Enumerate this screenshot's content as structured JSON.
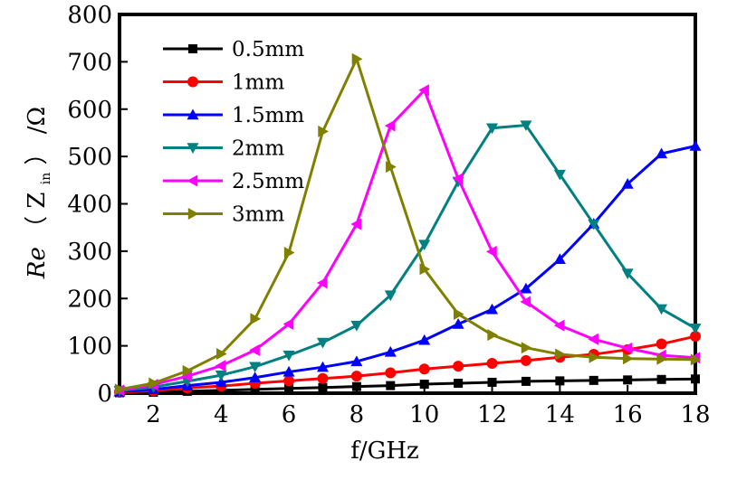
{
  "chart_data": {
    "type": "line",
    "xlabel": "f/GHz",
    "ylabel_prefix": "Re",
    "ylabel_var": "Z",
    "ylabel_sub": "in",
    "ylabel_unit": "/Ω",
    "xlim": [
      1,
      18
    ],
    "ylim": [
      0,
      800
    ],
    "xticks": [
      2,
      4,
      6,
      8,
      10,
      12,
      14,
      16,
      18
    ],
    "yticks": [
      0,
      100,
      200,
      300,
      400,
      500,
      600,
      700,
      800
    ],
    "legend_position": "top-left",
    "grid": false,
    "x": [
      1,
      2,
      3,
      4,
      5,
      6,
      7,
      8,
      9,
      10,
      11,
      12,
      13,
      14,
      15,
      16,
      17,
      18
    ],
    "series": [
      {
        "name": "0.5mm",
        "color": "#000000",
        "marker": "square",
        "values": [
          1,
          2,
          4,
          6,
          8,
          10,
          12,
          14,
          16,
          19,
          21,
          23,
          25,
          26,
          27,
          28,
          29,
          30
        ]
      },
      {
        "name": "1mm",
        "color": "#ff0000",
        "marker": "circle",
        "values": [
          2,
          5,
          11,
          15,
          21,
          26,
          31,
          36,
          43,
          51,
          57,
          63,
          69,
          76,
          82,
          92,
          104,
          120
        ]
      },
      {
        "name": "1.5mm",
        "color": "#0000ff",
        "marker": "triangle-up",
        "values": [
          3,
          8,
          16,
          23,
          33,
          45,
          55,
          67,
          87,
          112,
          146,
          177,
          221,
          283,
          358,
          442,
          506,
          522
        ]
      },
      {
        "name": "2mm",
        "color": "#008080",
        "marker": "triangle-down",
        "values": [
          5,
          13,
          25,
          38,
          56,
          80,
          107,
          143,
          207,
          314,
          447,
          560,
          566,
          462,
          357,
          253,
          178,
          137
        ]
      },
      {
        "name": "2.5mm",
        "color": "#ff00ff",
        "marker": "triangle-left",
        "values": [
          6,
          18,
          36,
          58,
          91,
          146,
          233,
          357,
          565,
          640,
          453,
          299,
          193,
          143,
          114,
          95,
          80,
          75
        ]
      },
      {
        "name": "3mm",
        "color": "#808000",
        "marker": "triangle-right",
        "values": [
          8,
          21,
          47,
          83,
          157,
          297,
          553,
          706,
          478,
          262,
          167,
          123,
          96,
          82,
          76,
          73,
          72,
          71
        ]
      }
    ]
  }
}
